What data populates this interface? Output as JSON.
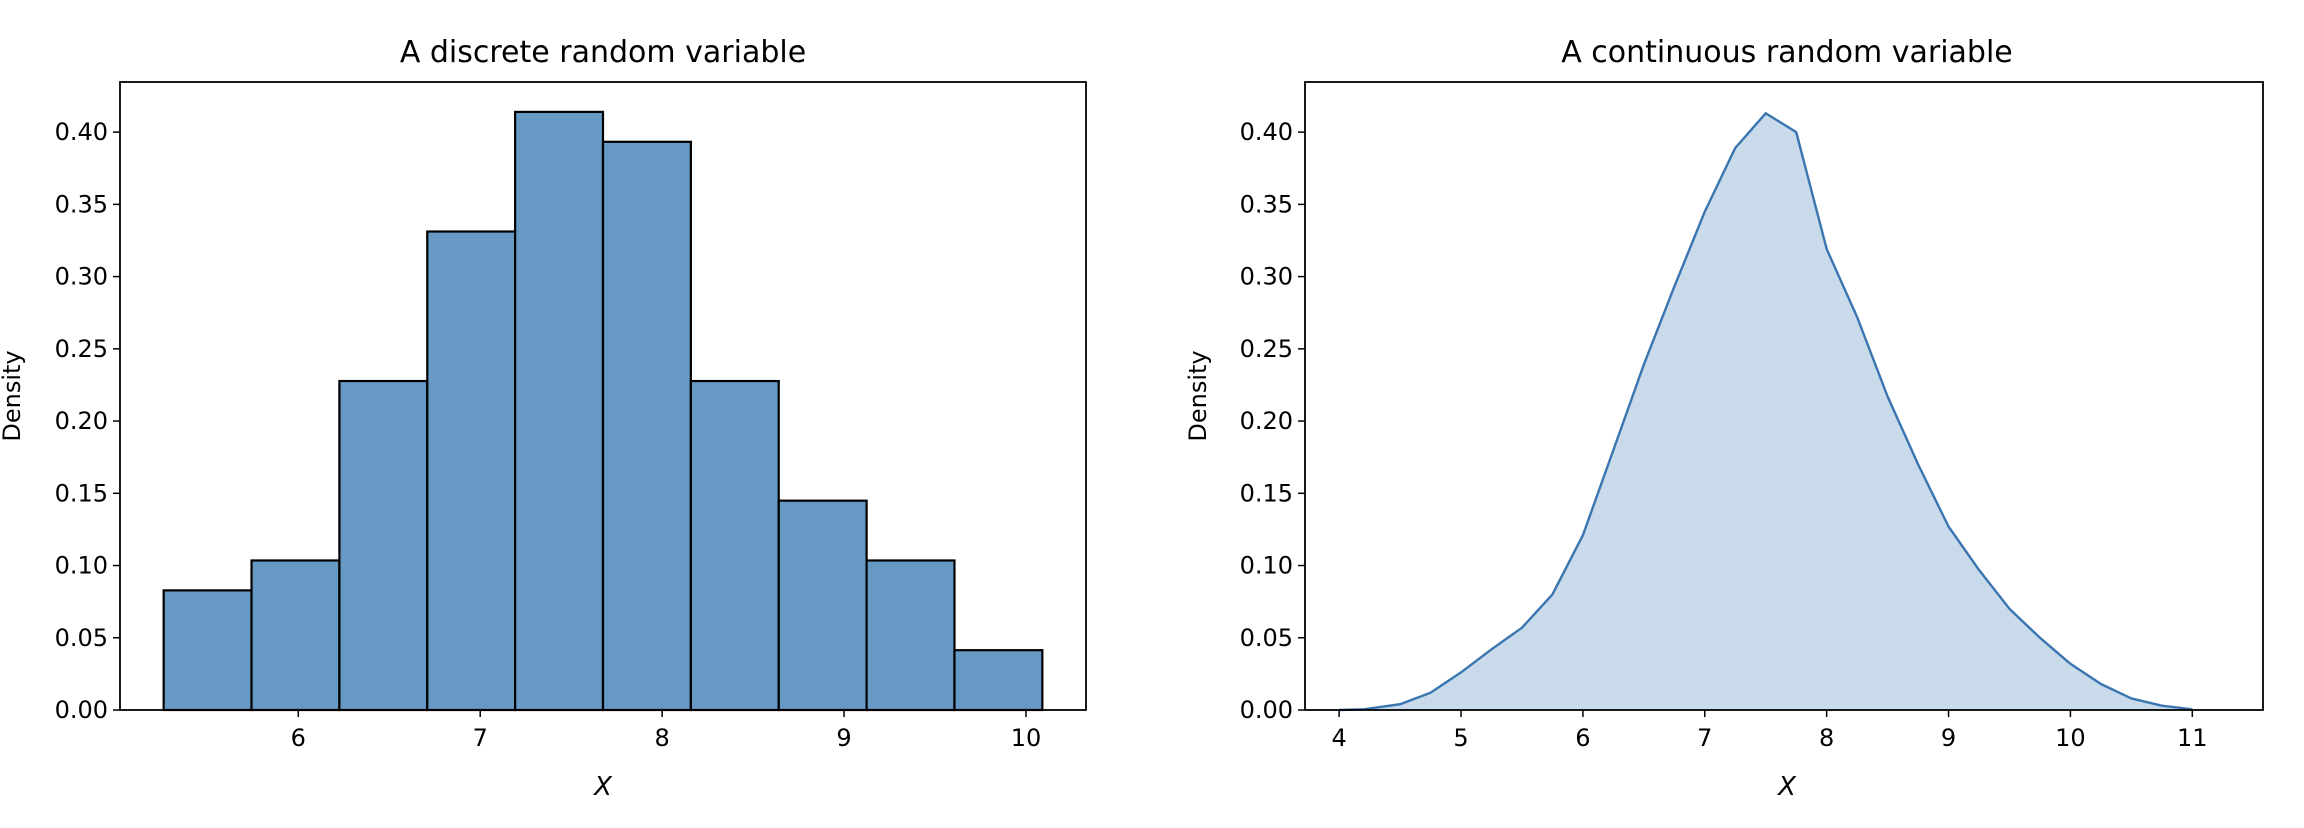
{
  "chart_data": [
    {
      "type": "bar",
      "title": "A discrete random variable",
      "xlabel": "X",
      "ylabel": "Density",
      "xlim": [
        5.02,
        10.33
      ],
      "ylim": [
        0,
        0.4347
      ],
      "xticks": [
        6,
        7,
        8,
        9,
        10
      ],
      "yticks": [
        0.0,
        0.05,
        0.1,
        0.15,
        0.2,
        0.25,
        0.3,
        0.35,
        0.4
      ],
      "bin_edges": [
        5.26,
        5.743,
        6.226,
        6.709,
        7.192,
        7.675,
        8.158,
        8.641,
        9.124,
        9.607,
        10.09
      ],
      "values": [
        0.0828,
        0.1035,
        0.2277,
        0.3312,
        0.414,
        0.3933,
        0.2277,
        0.1449,
        0.1035,
        0.0414
      ],
      "grid": false,
      "colors": {
        "fill": "#6699c4",
        "edge": "#000000"
      }
    },
    {
      "type": "area",
      "title": "A continuous random variable",
      "xlabel": "X",
      "ylabel": "Density",
      "xlim": [
        3.72,
        11.58
      ],
      "ylim": [
        0,
        0.4347
      ],
      "xticks": [
        4,
        5,
        6,
        7,
        8,
        9,
        10,
        11
      ],
      "yticks": [
        0.0,
        0.05,
        0.1,
        0.15,
        0.2,
        0.25,
        0.3,
        0.35,
        0.4
      ],
      "x": [
        4.0,
        4.2,
        4.5,
        4.75,
        5.0,
        5.25,
        5.5,
        5.75,
        6.0,
        6.25,
        6.5,
        6.75,
        7.0,
        7.25,
        7.5,
        7.75,
        8.0,
        8.25,
        8.5,
        8.75,
        9.0,
        9.25,
        9.5,
        9.75,
        10.0,
        10.25,
        10.5,
        10.75,
        11.0
      ],
      "y": [
        0.0,
        0.0005,
        0.004,
        0.012,
        0.026,
        0.042,
        0.057,
        0.08,
        0.121,
        0.18,
        0.239,
        0.293,
        0.345,
        0.389,
        0.413,
        0.4,
        0.319,
        0.272,
        0.217,
        0.17,
        0.127,
        0.097,
        0.07,
        0.05,
        0.032,
        0.018,
        0.008,
        0.003,
        0.0005
      ],
      "grid": false,
      "colors": {
        "line": "#3a75b0",
        "fill": "#c9dbea"
      }
    }
  ]
}
